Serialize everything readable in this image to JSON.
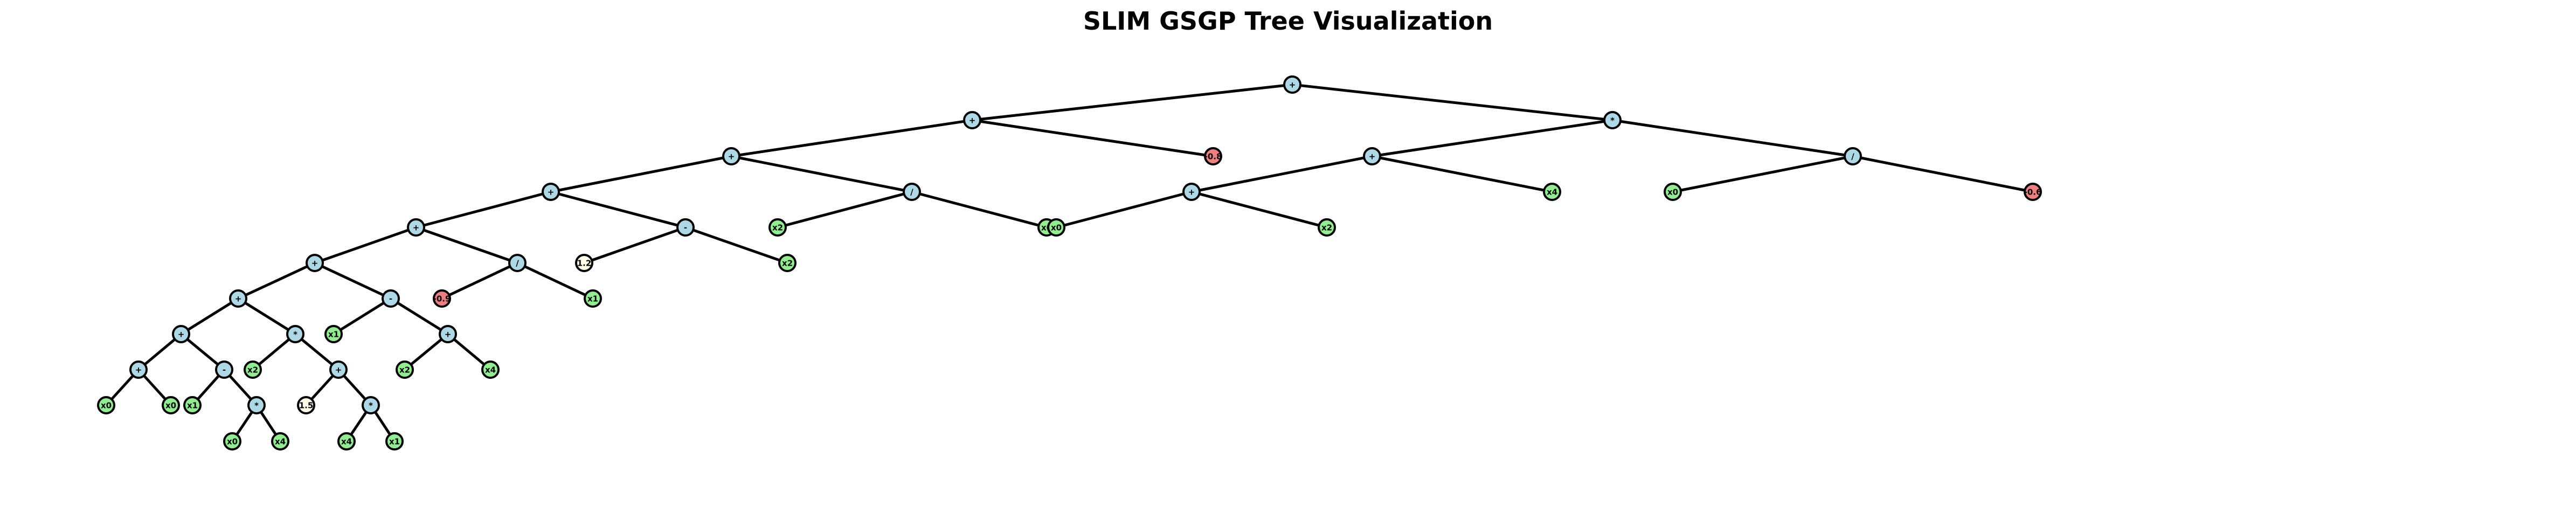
{
  "title": "SLIM GSGP Tree Visualization",
  "colors": {
    "function": "#add8e6",
    "terminal": "#90ee90",
    "constant_neg": "#f08080",
    "constant_pos": "#fffde8",
    "edge": "#000000",
    "outline": "#000000"
  },
  "tree": {
    "id": "n0",
    "label": "+",
    "kind": "function",
    "children": [
      {
        "id": "n1",
        "label": "+",
        "kind": "function",
        "children": [
          {
            "id": "n2",
            "label": "+",
            "kind": "function",
            "children": [
              {
                "id": "n3",
                "label": "+",
                "kind": "function",
                "children": [
                  {
                    "id": "n4",
                    "label": "+",
                    "kind": "function",
                    "children": [
                      {
                        "id": "n5",
                        "label": "+",
                        "kind": "function",
                        "children": [
                          {
                            "id": "n6",
                            "label": "+",
                            "kind": "function",
                            "children": [
                              {
                                "id": "n7",
                                "label": "+",
                                "kind": "function",
                                "children": [
                                  {
                                    "id": "n8",
                                    "label": "+",
                                    "kind": "function",
                                    "children": [
                                      {
                                        "id": "n9",
                                        "label": "x0",
                                        "kind": "terminal"
                                      },
                                      {
                                        "id": "n10",
                                        "label": "x0",
                                        "kind": "terminal"
                                      }
                                    ]
                                  },
                                  {
                                    "id": "n11",
                                    "label": "-",
                                    "kind": "function",
                                    "children": [
                                      {
                                        "id": "n12",
                                        "label": "x1",
                                        "kind": "terminal"
                                      },
                                      {
                                        "id": "n13",
                                        "label": "*",
                                        "kind": "function",
                                        "children": [
                                          {
                                            "id": "n14",
                                            "label": "x0",
                                            "kind": "terminal"
                                          },
                                          {
                                            "id": "n15",
                                            "label": "x4",
                                            "kind": "terminal"
                                          }
                                        ]
                                      }
                                    ]
                                  }
                                ]
                              },
                              {
                                "id": "n16",
                                "label": "*",
                                "kind": "function",
                                "children": [
                                  {
                                    "id": "n17",
                                    "label": "x2",
                                    "kind": "terminal"
                                  },
                                  {
                                    "id": "n18",
                                    "label": "+",
                                    "kind": "function",
                                    "children": [
                                      {
                                        "id": "n19",
                                        "label": "1.5",
                                        "kind": "constant_pos"
                                      },
                                      {
                                        "id": "n20",
                                        "label": "*",
                                        "kind": "function",
                                        "children": [
                                          {
                                            "id": "n21",
                                            "label": "x4",
                                            "kind": "terminal"
                                          },
                                          {
                                            "id": "n22",
                                            "label": "x1",
                                            "kind": "terminal"
                                          }
                                        ]
                                      }
                                    ]
                                  }
                                ]
                              }
                            ]
                          },
                          {
                            "id": "n23",
                            "label": "-",
                            "kind": "function",
                            "children": [
                              {
                                "id": "n24",
                                "label": "x1",
                                "kind": "terminal"
                              },
                              {
                                "id": "n25",
                                "label": "+",
                                "kind": "function",
                                "children": [
                                  {
                                    "id": "n26",
                                    "label": "x2",
                                    "kind": "terminal"
                                  },
                                  {
                                    "id": "n27",
                                    "label": "x4",
                                    "kind": "terminal"
                                  }
                                ]
                              }
                            ]
                          }
                        ]
                      },
                      {
                        "id": "n28",
                        "label": "/",
                        "kind": "function",
                        "children": [
                          {
                            "id": "n29",
                            "label": "-0.9",
                            "kind": "constant_neg"
                          },
                          {
                            "id": "n30",
                            "label": "x1",
                            "kind": "terminal"
                          }
                        ]
                      }
                    ]
                  },
                  {
                    "id": "n31",
                    "label": "-",
                    "kind": "function",
                    "children": [
                      {
                        "id": "n32",
                        "label": "1.2",
                        "kind": "constant_pos"
                      },
                      {
                        "id": "n33",
                        "label": "x2",
                        "kind": "terminal"
                      }
                    ]
                  }
                ]
              },
              {
                "id": "n34",
                "label": "/",
                "kind": "function",
                "children": [
                  {
                    "id": "n35",
                    "label": "x2",
                    "kind": "terminal"
                  },
                  {
                    "id": "n36",
                    "label": "x0",
                    "kind": "terminal"
                  }
                ]
              }
            ]
          },
          {
            "id": "n37",
            "label": "-0.8",
            "kind": "constant_neg"
          }
        ]
      },
      {
        "id": "n38",
        "label": "*",
        "kind": "function",
        "children": [
          {
            "id": "n39",
            "label": "+",
            "kind": "function",
            "children": [
              {
                "id": "n40",
                "label": "+",
                "kind": "function",
                "children": [
                  {
                    "id": "n41",
                    "label": "x0",
                    "kind": "terminal"
                  },
                  {
                    "id": "n42",
                    "label": "x2",
                    "kind": "terminal"
                  }
                ]
              },
              {
                "id": "n43",
                "label": "x4",
                "kind": "terminal"
              }
            ]
          },
          {
            "id": "n44",
            "label": "/",
            "kind": "function",
            "children": [
              {
                "id": "n45",
                "label": "x0",
                "kind": "terminal"
              },
              {
                "id": "n46",
                "label": "-0.6",
                "kind": "constant_neg"
              }
            ]
          }
        ]
      }
    ]
  }
}
